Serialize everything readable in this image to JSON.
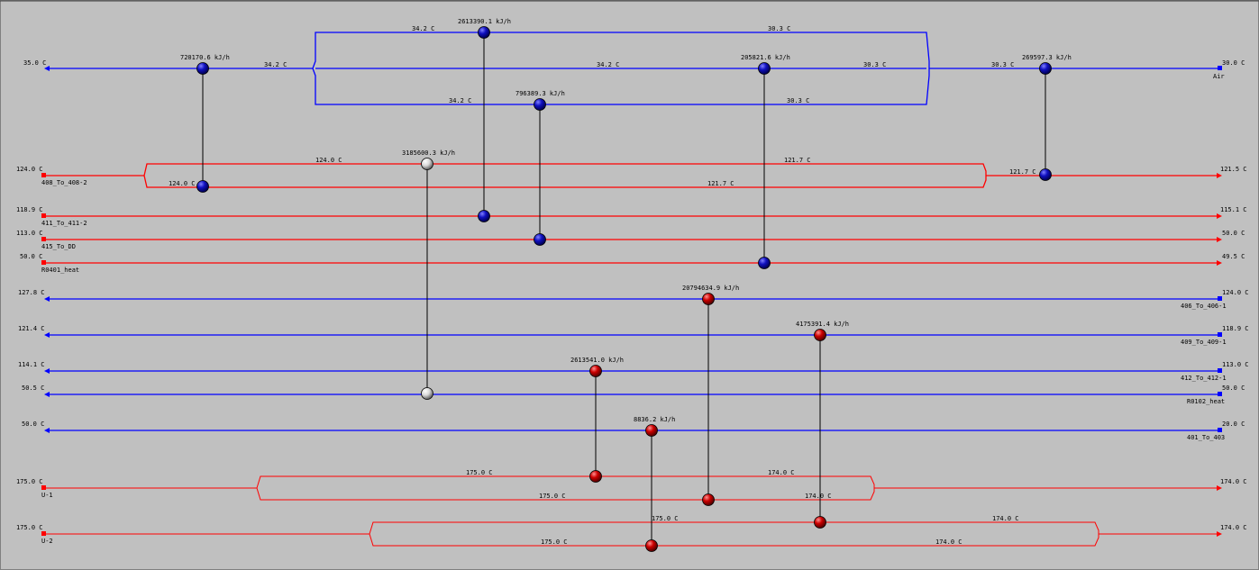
{
  "colors": {
    "background": "#c0c0c0",
    "hot_stream": "#ff0000",
    "cold_stream": "#0000ff",
    "utility_hot_stream": "#ff0000",
    "exchanger_blue": "#0000cc",
    "exchanger_red": "#cc0000",
    "exchanger_white": "#e0e0e0",
    "connector": "#000000"
  },
  "streams": [
    {
      "id": "air",
      "kind": "cold",
      "name": "Air",
      "t_in": "30.0 C",
      "t_out": "35.0 C"
    },
    {
      "id": "s408",
      "kind": "hot",
      "name": "408_To_408-2",
      "t_in": "124.0 C",
      "t_out": "121.5 C"
    },
    {
      "id": "s411",
      "kind": "hot",
      "name": "411_To_411-2",
      "t_in": "118.9 C",
      "t_out": "115.1 C"
    },
    {
      "id": "s415",
      "kind": "hot",
      "name": "415_To_DD",
      "t_in": "113.0 C",
      "t_out": "50.0 C"
    },
    {
      "id": "r0401",
      "kind": "hot",
      "name": "R0401_heat",
      "t_in": "50.0 C",
      "t_out": "49.5 C"
    },
    {
      "id": "s406",
      "kind": "cold",
      "name": "406_To_406-1",
      "t_in": "124.0 C",
      "t_out": "127.8 C"
    },
    {
      "id": "s409",
      "kind": "cold",
      "name": "409_To_409-1",
      "t_in": "118.9 C",
      "t_out": "121.4 C"
    },
    {
      "id": "s412",
      "kind": "cold",
      "name": "412_To_412-1",
      "t_in": "113.0 C",
      "t_out": "114.1 C"
    },
    {
      "id": "r0102",
      "kind": "cold",
      "name": "R0102_heat",
      "t_in": "50.0 C",
      "t_out": "50.5 C"
    },
    {
      "id": "s401",
      "kind": "cold",
      "name": "401_To_403",
      "t_in": "20.0 C",
      "t_out": "50.0 C"
    },
    {
      "id": "u1",
      "kind": "hot_utility",
      "name": "U-1",
      "t_in": "175.0 C",
      "t_out": "174.0 C"
    },
    {
      "id": "u2",
      "kind": "hot_utility",
      "name": "U-2",
      "t_in": "175.0 C",
      "t_out": "174.0 C"
    }
  ],
  "branch_temps": {
    "air_top_left": "34.2 C",
    "air_top_right": "30.3 C",
    "air_main_left_outer": "34.2 C",
    "air_main_mid": "34.2 C",
    "air_main_right_inner": "30.3 C",
    "air_main_right_outer": "30.3 C",
    "air_bot_left": "34.2 C",
    "air_bot_right": "30.3 C",
    "s408_top_left": "124.0 C",
    "s408_top_right": "121.7 C",
    "s408_bot_left": "124.0 C",
    "s408_bot_mid": "121.7 C",
    "s408_right": "121.7 C",
    "u1_top_left": "175.0 C",
    "u1_top_right": "174.0 C",
    "u1_bot_left": "175.0 C",
    "u1_bot_right": "174.0 C",
    "u2_top_left": "175.0 C",
    "u2_top_right": "174.0 C",
    "u2_bot_left": "175.0 C",
    "u2_bot_right": "174.0 C"
  },
  "exchangers": [
    {
      "id": "e1",
      "duty": "720170.6 kJ/h",
      "color": "blue"
    },
    {
      "id": "e2",
      "duty": "2613390.1 kJ/h",
      "color": "blue"
    },
    {
      "id": "e3",
      "duty": "796389.3 kJ/h",
      "color": "blue"
    },
    {
      "id": "e4",
      "duty": "205821.6 kJ/h",
      "color": "blue"
    },
    {
      "id": "e5",
      "duty": "269597.3 kJ/h",
      "color": "blue"
    },
    {
      "id": "e6",
      "duty": "3185600.3 kJ/h",
      "color": "white"
    },
    {
      "id": "e7",
      "duty": "20794634.9 kJ/h",
      "color": "red"
    },
    {
      "id": "e8",
      "duty": "4175391.4 kJ/h",
      "color": "red"
    },
    {
      "id": "e9",
      "duty": "2613541.0 kJ/h",
      "color": "red"
    },
    {
      "id": "e10",
      "duty": "8836.2 kJ/h",
      "color": "red"
    }
  ]
}
